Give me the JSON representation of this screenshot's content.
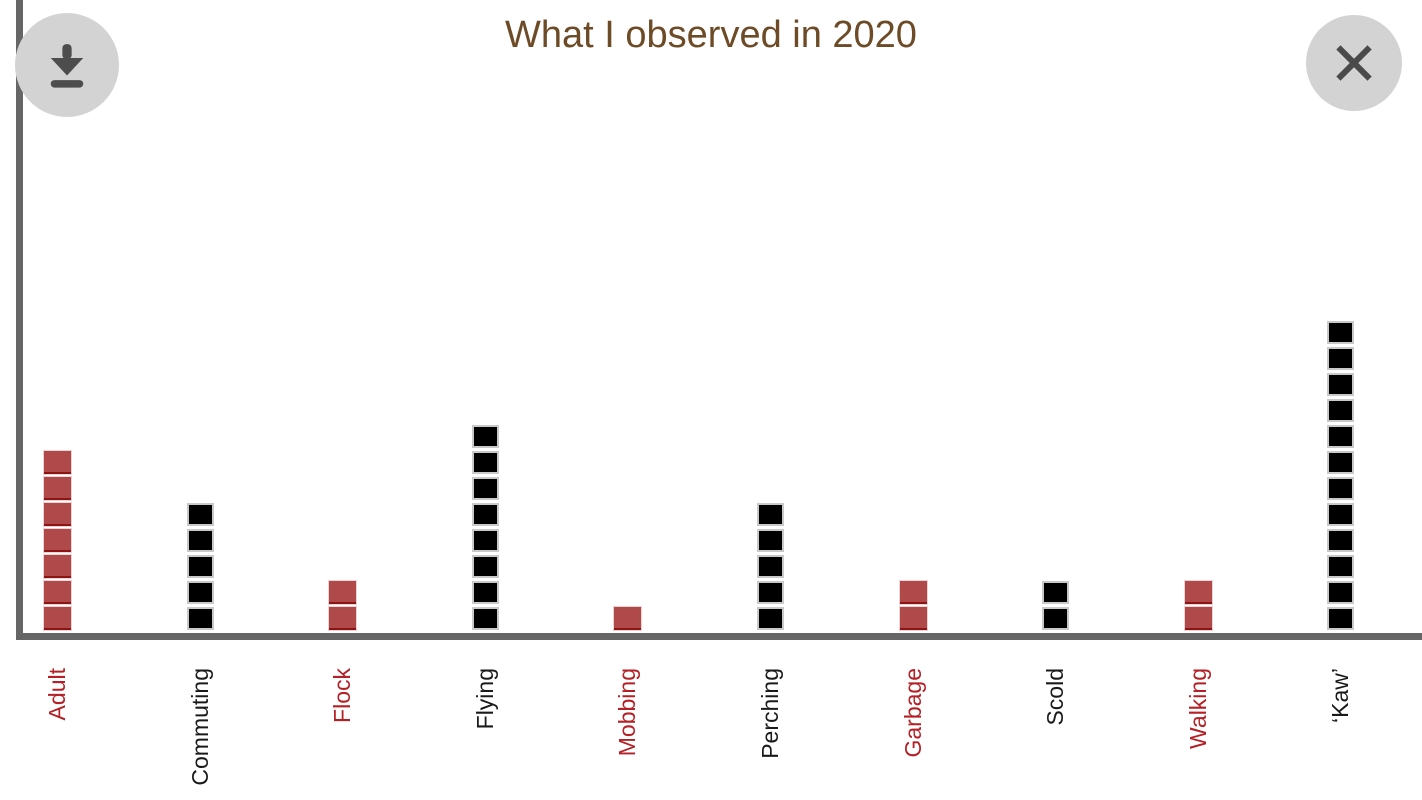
{
  "header": {
    "title": "What I observed in 2020",
    "title_color": "#6d4b26"
  },
  "buttons": {
    "download": {
      "icon": "download-icon",
      "background": "#d3d3d3",
      "glyph_color": "#4d4d4d"
    },
    "close": {
      "icon": "close-icon",
      "background": "#d3d3d3",
      "glyph_color": "#4a4a4a"
    }
  },
  "axes": {
    "color": "#666666",
    "y_axis_visible": true,
    "x_axis_visible": true
  },
  "chart_data": {
    "type": "bar",
    "subtype": "pictograph_stacked_unit_squares",
    "title": "What I observed in 2020",
    "categories": [
      "Adult",
      "Commuting",
      "Flock",
      "Flying",
      "Mobbing",
      "Perching",
      "Garbage",
      "Scold",
      "Walking",
      "‘Kaw’"
    ],
    "values": [
      7,
      5,
      2,
      8,
      1,
      5,
      2,
      2,
      2,
      12
    ],
    "unit_value": 1,
    "bar_colors": [
      "#b04a4a",
      "#000000",
      "#b04a4a",
      "#000000",
      "#b04a4a",
      "#000000",
      "#b04a4a",
      "#000000",
      "#b04a4a",
      "#000000"
    ],
    "bar_border_colors": [
      "#8e1414",
      "#c9c9c9",
      "#8e1414",
      "#c9c9c9",
      "#8e1414",
      "#c9c9c9",
      "#8e1414",
      "#c9c9c9",
      "#8e1414",
      "#c9c9c9"
    ],
    "tick_label_colors": [
      "#b42025",
      "#1a1a1a",
      "#b42025",
      "#1a1a1a",
      "#b42025",
      "#1a1a1a",
      "#b42025",
      "#1a1a1a",
      "#b42025",
      "#1a1a1a"
    ],
    "xlabel": "",
    "ylabel": "",
    "ylim": [
      0,
      12
    ],
    "grid": false,
    "legend": false
  }
}
